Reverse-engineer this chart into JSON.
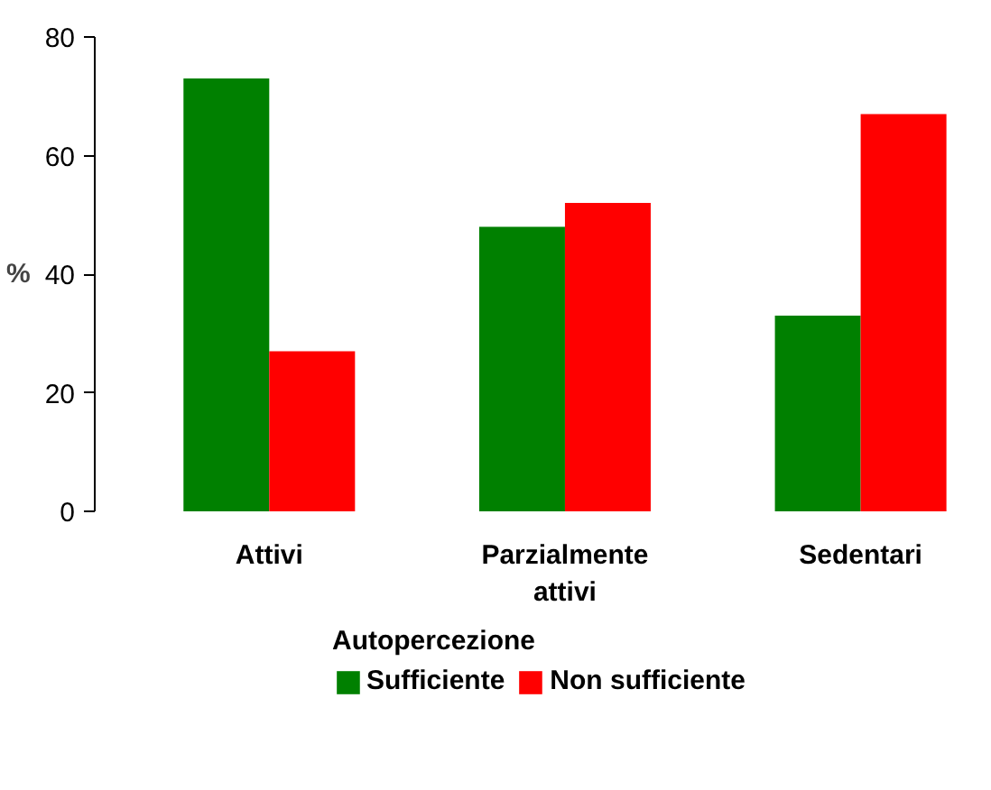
{
  "chart_data": {
    "type": "bar",
    "ylabel": "%",
    "legend_title": "Autopercezione",
    "categories": [
      "Attivi",
      "Parzialmente attivi",
      "Sedentari"
    ],
    "series": [
      {
        "name": "Sufficiente",
        "color": "#008000",
        "values": [
          73,
          48,
          33
        ]
      },
      {
        "name": "Non sufficiente",
        "color": "#ff0000",
        "values": [
          27,
          52,
          67
        ]
      }
    ],
    "ylim": [
      0,
      80
    ],
    "yticks": [
      0,
      20,
      40,
      60,
      80
    ],
    "grid": false,
    "legend": "bottom"
  }
}
